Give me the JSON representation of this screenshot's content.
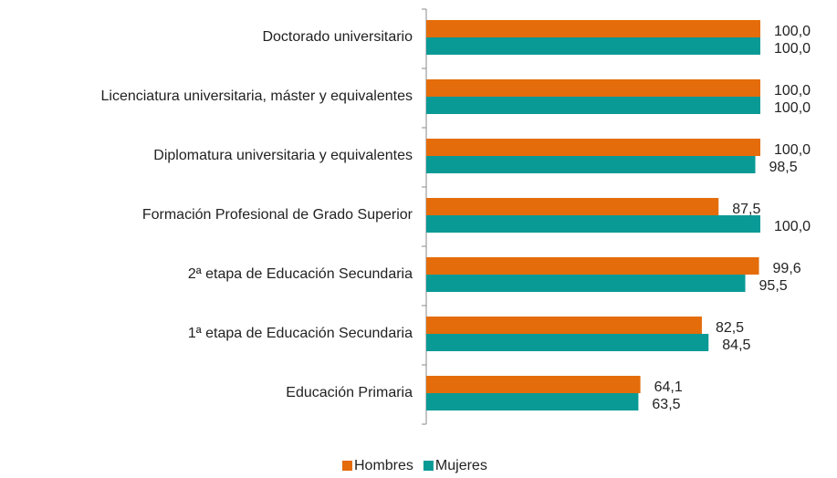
{
  "chart_data": {
    "type": "hbar",
    "categories": [
      "Doctorado universitario",
      "Licenciatura universitaria, máster y equivalentes",
      "Diplomatura universitaria y equivalentes",
      "Formación Profesional de Grado Superior",
      "2ª etapa de Educación Secundaria",
      "1ª etapa de Educación Secundaria",
      "Educación Primaria"
    ],
    "series": [
      {
        "name": "Hombres",
        "color": "#e46c0a",
        "values": [
          100,
          100,
          100,
          87.5,
          99.6,
          82.5,
          64.1
        ],
        "value_labels": [
          "100,0",
          "100,0",
          "100,0",
          "87,5",
          "99,6",
          "82,5",
          "64,1"
        ]
      },
      {
        "name": "Mujeres",
        "color": "#0a9a96",
        "values": [
          100,
          100,
          98.5,
          100,
          95.5,
          84.5,
          63.5
        ],
        "value_labels": [
          "100,0",
          "100,0",
          "98,5",
          "100,0",
          "95,5",
          "84,5",
          "63,5"
        ]
      }
    ],
    "xlim": [
      0,
      100
    ],
    "legend": "bottom"
  }
}
